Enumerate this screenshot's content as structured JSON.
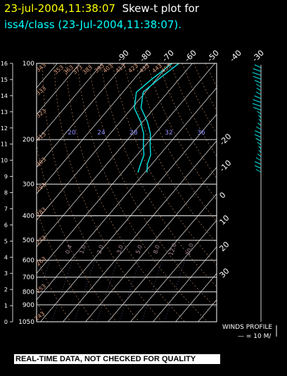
{
  "header": {
    "title_date": "23-jul-2004,11:38:07",
    "title_text": "Skew-t plot for",
    "subtitle": "iss4/class (23-Jul-2004,11:38:07)."
  },
  "chart_data": {
    "type": "line",
    "chart_kind": "skew-t",
    "pressure_levels": [
      100,
      200,
      300,
      400,
      500,
      600,
      700,
      800,
      900,
      1050
    ],
    "height_ticks": [
      16,
      15,
      14,
      13,
      12,
      11,
      10,
      9,
      8,
      7,
      6,
      5,
      4,
      3,
      2,
      1,
      0
    ],
    "temp_top_ticks": [
      -90,
      -80,
      -70,
      -60,
      -50,
      -40,
      -30
    ],
    "temp_right_ticks": [
      -20,
      -10,
      0,
      10,
      20,
      30
    ],
    "mixing_ratio_top": [
      "20",
      "24",
      "28",
      "32",
      "36"
    ],
    "mixing_ratio_bottom": [
      "0.4",
      "1.0",
      "2.0",
      "3.0",
      "5.0",
      "8.0",
      "12.0",
      "20.0"
    ],
    "theta_labels": [
      "243",
      "253",
      "263",
      "273",
      "283",
      "293",
      "303",
      "313",
      "323",
      "333",
      "343",
      "353",
      "363",
      "373",
      "383",
      "393",
      "403",
      "413",
      "423",
      "433",
      "443",
      "453"
    ],
    "series": [
      {
        "role": "temperature",
        "color": "#00e5e5",
        "points": [
          [
            90,
            -70
          ],
          [
            100,
            -66
          ],
          [
            115,
            -69
          ],
          [
            130,
            -71
          ],
          [
            150,
            -66
          ],
          [
            170,
            -58
          ],
          [
            190,
            -52
          ],
          [
            210,
            -48
          ],
          [
            230,
            -44
          ],
          [
            250,
            -42
          ],
          [
            270,
            -39
          ]
        ]
      },
      {
        "role": "dewpoint",
        "color": "#00e5e5",
        "points": [
          [
            90,
            -73
          ],
          [
            100,
            -69
          ],
          [
            115,
            -72
          ],
          [
            130,
            -74
          ],
          [
            150,
            -69
          ],
          [
            170,
            -61
          ],
          [
            190,
            -55
          ],
          [
            210,
            -51
          ],
          [
            230,
            -47
          ],
          [
            250,
            -45
          ],
          [
            270,
            -43
          ]
        ]
      }
    ],
    "winds_profile": {
      "label": "WINDS PROFILE",
      "scale": "— = 10 M/"
    },
    "grid": true
  },
  "footer": {
    "banner": "REAL-TIME DATA, NOT CHECKED FOR QUALITY"
  },
  "colors": {
    "background": "#000000",
    "title_date": "#ffff00",
    "title_text": "#ffffff",
    "subtitle": "#00ffff",
    "sounding": "#00e5e5",
    "theta_labels": "#e0a080",
    "mixing_labels": "#9090ff",
    "grid": "#ffffff"
  }
}
